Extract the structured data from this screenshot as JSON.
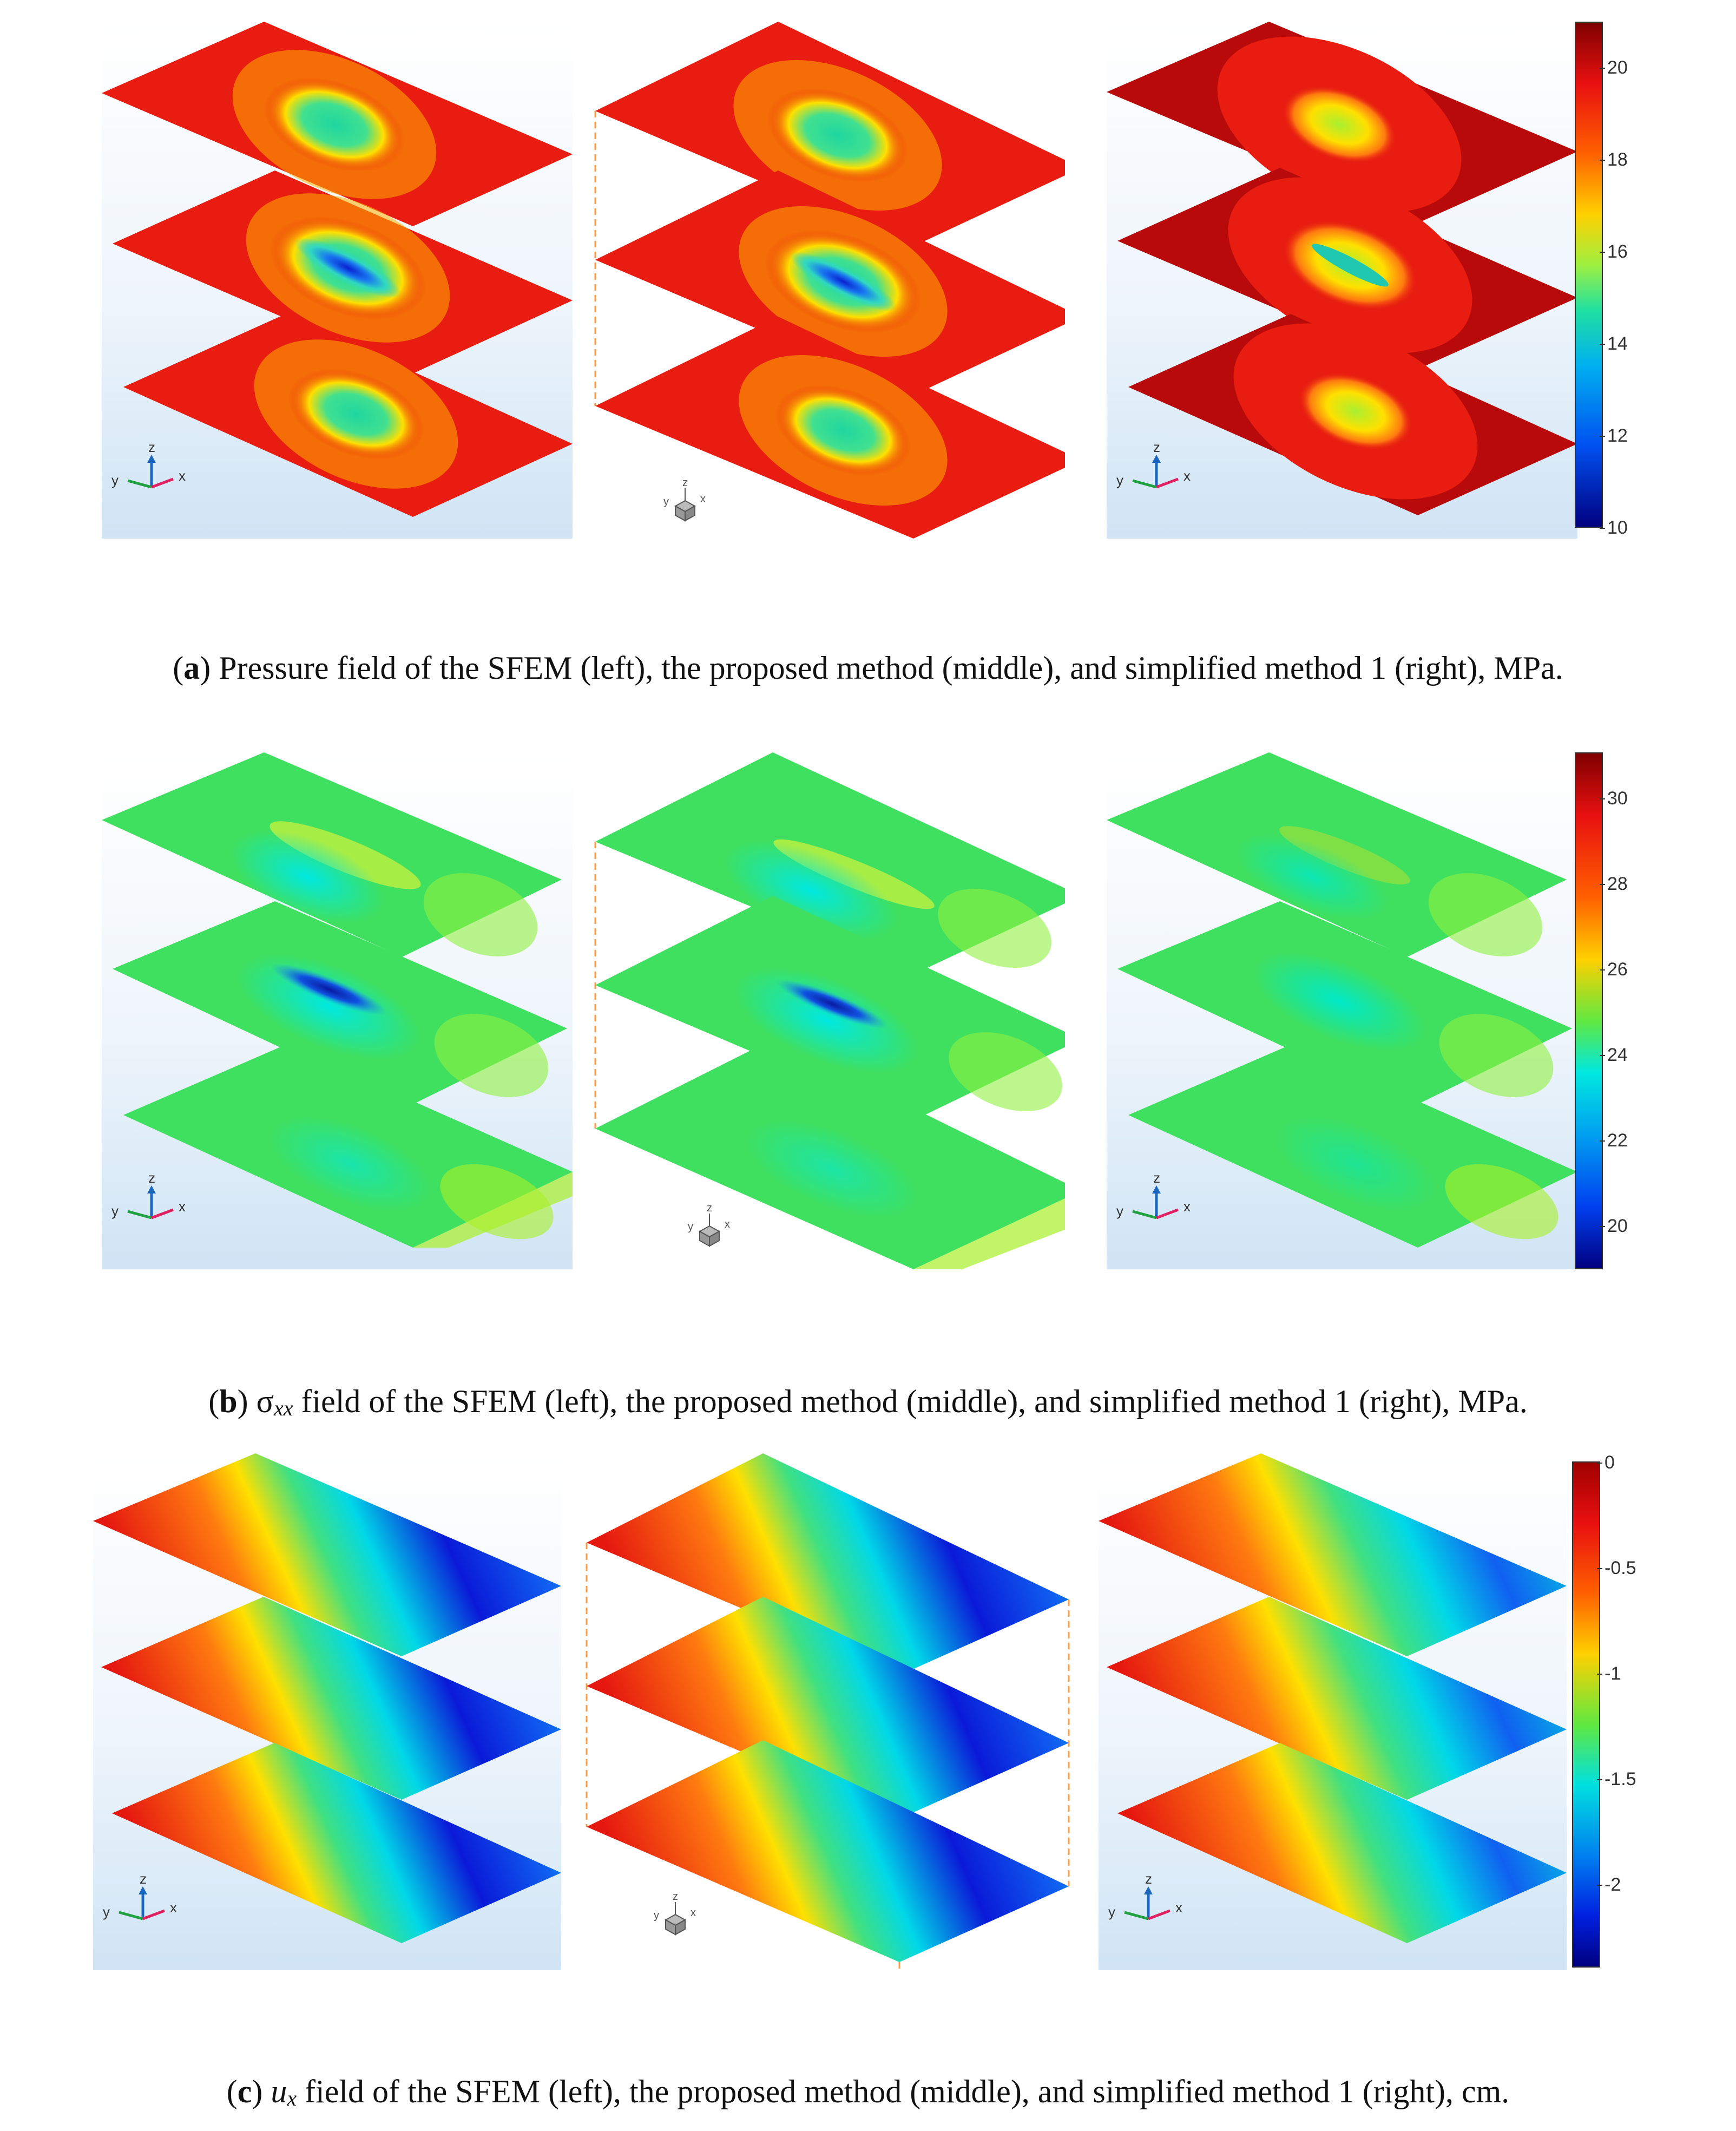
{
  "figures": [
    {
      "id": "a",
      "colorbar": {
        "min": 10,
        "max": 21,
        "ticks": [
          "20",
          "18",
          "16",
          "14",
          "12",
          "10"
        ]
      },
      "caption": {
        "letter": "a",
        "text": "Pressure field of the SFEM (left), the proposed method (middle), and simplified method 1 (right), MPa."
      },
      "colors": {
        "base": "#e81c10",
        "rim": "#ffcc00",
        "center": "#1fd6a0",
        "crack": "#0a20d0"
      }
    },
    {
      "id": "b",
      "colorbar": {
        "min": 19,
        "max": 31,
        "ticks": [
          "30",
          "28",
          "26",
          "24",
          "22",
          "20"
        ]
      },
      "caption": {
        "letter": "b",
        "symbol": "σ",
        "sub": "xx",
        "text": " field of the SFEM (left), the proposed method (middle), and simplified method 1 (right), MPa."
      },
      "colors": {
        "base": "#4ce84a",
        "rim": "#a8f02a",
        "center": "#00e8d8",
        "crack": "#0a20c0"
      }
    },
    {
      "id": "c",
      "colorbar": {
        "min": -2.4,
        "max": 0,
        "ticks": [
          "0",
          "-0.5",
          "-1",
          "-1.5",
          "-2"
        ]
      },
      "caption": {
        "letter": "c",
        "symbol": "u",
        "sub": "x",
        "text": " field of the SFEM (left), the proposed method (middle), and simplified method 1 (right), cm."
      },
      "colors": {
        "base": "#e51810",
        "mid": "#ffe000",
        "low": "#00e0e0",
        "deep": "#0a1ad8"
      }
    }
  ],
  "axis_labels": {
    "z": "z",
    "y": "y",
    "x": "x"
  }
}
